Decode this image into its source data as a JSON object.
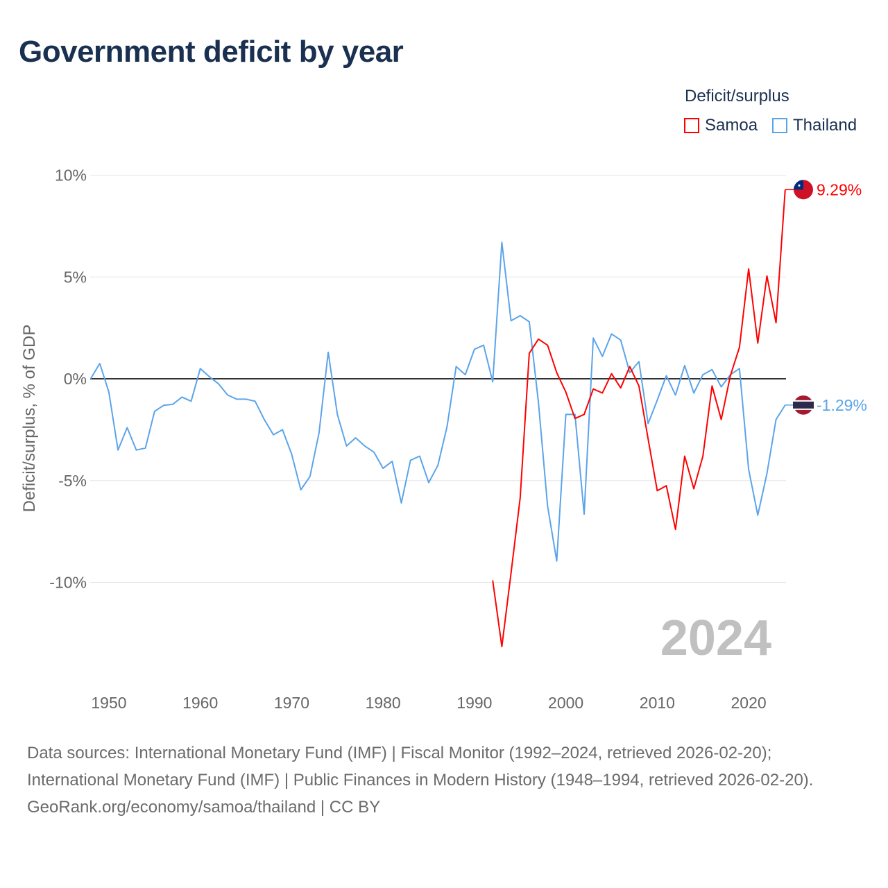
{
  "title": "Government deficit by year",
  "legend": {
    "title": "Deficit/surplus",
    "items": [
      {
        "name": "Samoa",
        "color": "#ff0000"
      },
      {
        "name": "Thailand",
        "color": "#5ba4ea"
      }
    ]
  },
  "watermark_year": "2024",
  "footer": {
    "sources": "Data sources: International Monetary Fund (IMF) | Fiscal Monitor (1992–2024, retrieved 2026-02-20); International Monetary Fund (IMF) | Public Finances in Modern History (1948–1994, retrieved 2026-02-20).",
    "credit": "GeoRank.org/economy/samoa/thailand | CC BY"
  },
  "chart_data": {
    "type": "line",
    "title": "Government deficit by year",
    "xlabel": "",
    "ylabel": "Deficit/surplus, % of GDP",
    "xlim": [
      1948,
      2024
    ],
    "ylim": [
      -14,
      10.5
    ],
    "xticks": [
      1950,
      1960,
      1970,
      1980,
      1990,
      2000,
      2010,
      2020
    ],
    "xtick_labels": [
      "1950",
      "1960",
      "1970",
      "1980",
      "1990",
      "2000",
      "2010",
      "2020"
    ],
    "yticks": [
      10,
      5,
      0,
      -5,
      -10
    ],
    "ytick_labels": [
      "10%",
      "5%",
      "0%",
      "-5%",
      "-10%"
    ],
    "grid": true,
    "legend_position": "top-right",
    "series": [
      {
        "name": "Samoa",
        "color": "#ff0000",
        "end_label": "9.29%",
        "x": [
          1992,
          1993,
          1994,
          1995,
          1996,
          1997,
          1998,
          1999,
          2000,
          2001,
          2002,
          2003,
          2004,
          2005,
          2006,
          2007,
          2008,
          2009,
          2010,
          2011,
          2012,
          2013,
          2014,
          2015,
          2016,
          2017,
          2018,
          2019,
          2020,
          2021,
          2022,
          2023,
          2024
        ],
        "values": [
          -9.9,
          -13.15,
          -9.55,
          -5.85,
          1.25,
          1.95,
          1.65,
          0.3,
          -0.65,
          -1.95,
          -1.75,
          -0.5,
          -0.7,
          0.25,
          -0.45,
          0.6,
          -0.35,
          -2.95,
          -5.5,
          -5.25,
          -7.4,
          -3.8,
          -5.4,
          -3.8,
          -0.35,
          -2.0,
          0.15,
          1.55,
          5.4,
          1.75,
          5.05,
          2.75,
          9.29
        ]
      },
      {
        "name": "Thailand",
        "color": "#5ba4ea",
        "end_label": "-1.29%",
        "x": [
          1948,
          1949,
          1950,
          1951,
          1952,
          1953,
          1954,
          1955,
          1956,
          1957,
          1958,
          1959,
          1960,
          1961,
          1962,
          1963,
          1964,
          1965,
          1966,
          1967,
          1968,
          1969,
          1970,
          1971,
          1972,
          1973,
          1974,
          1975,
          1976,
          1977,
          1978,
          1979,
          1980,
          1981,
          1982,
          1983,
          1984,
          1985,
          1986,
          1987,
          1988,
          1989,
          1990,
          1991,
          1992,
          1993,
          1994,
          1995,
          1996,
          1997,
          1998,
          1999,
          2000,
          2001,
          2002,
          2003,
          2004,
          2005,
          2006,
          2007,
          2008,
          2009,
          2010,
          2011,
          2012,
          2013,
          2014,
          2015,
          2016,
          2017,
          2018,
          2019,
          2020,
          2021,
          2022,
          2023,
          2024
        ],
        "values": [
          0,
          0.75,
          -0.65,
          -3.5,
          -2.4,
          -3.5,
          -3.4,
          -1.6,
          -1.3,
          -1.25,
          -0.9,
          -1.1,
          0.5,
          0.1,
          -0.25,
          -0.8,
          -1.0,
          -1.0,
          -1.1,
          -2.0,
          -2.75,
          -2.5,
          -3.7,
          -5.45,
          -4.8,
          -2.65,
          1.3,
          -1.75,
          -3.3,
          -2.9,
          -3.3,
          -3.6,
          -4.4,
          -4.05,
          -6.1,
          -4.0,
          -3.8,
          -5.1,
          -4.25,
          -2.35,
          0.6,
          0.2,
          1.45,
          1.65,
          -0.15,
          6.7,
          2.85,
          3.1,
          2.8,
          -1.15,
          -6.25,
          -8.95,
          -1.75,
          -1.75,
          -6.65,
          2.0,
          1.1,
          2.2,
          1.9,
          0.3,
          0.85,
          -2.2,
          -1.05,
          0.15,
          -0.8,
          0.65,
          -0.7,
          0.2,
          0.45,
          -0.4,
          0.2,
          0.5,
          -4.45,
          -6.7,
          -4.65,
          -2.0,
          -1.29
        ]
      }
    ]
  }
}
